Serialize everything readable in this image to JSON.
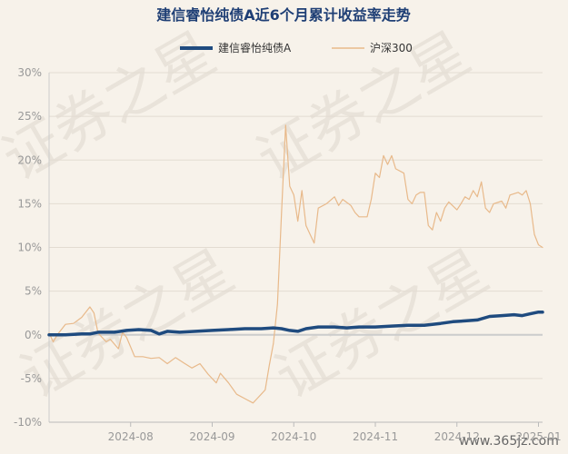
{
  "chart_data": {
    "type": "line",
    "title": "建信睿怡纯债A近6个月累计收益率走势",
    "xlabel": "",
    "ylabel": "",
    "ylim": [
      -10,
      30
    ],
    "yticks": [
      -10,
      -5,
      0,
      5,
      10,
      15,
      20,
      25,
      30
    ],
    "ytick_labels": [
      "-10%",
      "-5%",
      "0%",
      "5%",
      "10%",
      "15%",
      "20%",
      "25%",
      "30%"
    ],
    "xtick_labels": [
      "2024-08",
      "2024-09",
      "2024-10",
      "2024-11",
      "2024-12",
      "2025-01"
    ],
    "xtick_positions": [
      1.0,
      2.0,
      3.0,
      4.0,
      5.0,
      6.0
    ],
    "x_range": [
      0.0,
      6.05
    ],
    "grid": true,
    "legend_position": "top-center",
    "series": [
      {
        "name": "建信睿怡纯债A",
        "color": "#1f4b7f",
        "points": [
          [
            0.0,
            0.0
          ],
          [
            0.2,
            0.0
          ],
          [
            0.4,
            0.1
          ],
          [
            0.5,
            0.1
          ],
          [
            0.6,
            0.3
          ],
          [
            0.8,
            0.3
          ],
          [
            0.95,
            0.5
          ],
          [
            1.1,
            0.6
          ],
          [
            1.25,
            0.5
          ],
          [
            1.35,
            0.1
          ],
          [
            1.45,
            0.4
          ],
          [
            1.6,
            0.3
          ],
          [
            1.8,
            0.4
          ],
          [
            2.0,
            0.5
          ],
          [
            2.2,
            0.6
          ],
          [
            2.4,
            0.7
          ],
          [
            2.6,
            0.7
          ],
          [
            2.75,
            0.8
          ],
          [
            2.85,
            0.7
          ],
          [
            2.95,
            0.5
          ],
          [
            3.05,
            0.4
          ],
          [
            3.15,
            0.7
          ],
          [
            3.3,
            0.9
          ],
          [
            3.5,
            0.9
          ],
          [
            3.65,
            0.8
          ],
          [
            3.8,
            0.9
          ],
          [
            4.0,
            0.9
          ],
          [
            4.2,
            1.0
          ],
          [
            4.4,
            1.1
          ],
          [
            4.6,
            1.1
          ],
          [
            4.8,
            1.3
          ],
          [
            4.95,
            1.5
          ],
          [
            5.1,
            1.6
          ],
          [
            5.25,
            1.7
          ],
          [
            5.4,
            2.1
          ],
          [
            5.55,
            2.2
          ],
          [
            5.7,
            2.3
          ],
          [
            5.8,
            2.2
          ],
          [
            5.9,
            2.4
          ],
          [
            6.0,
            2.6
          ],
          [
            6.05,
            2.6
          ]
        ]
      },
      {
        "name": "沪深300",
        "color": "#e8b98a",
        "points": [
          [
            0.0,
            0.2
          ],
          [
            0.05,
            -0.8
          ],
          [
            0.1,
            0.0
          ],
          [
            0.2,
            1.2
          ],
          [
            0.3,
            1.3
          ],
          [
            0.4,
            2.0
          ],
          [
            0.5,
            3.2
          ],
          [
            0.55,
            2.5
          ],
          [
            0.6,
            0.2
          ],
          [
            0.7,
            -0.8
          ],
          [
            0.75,
            -0.5
          ],
          [
            0.85,
            -1.6
          ],
          [
            0.9,
            0.3
          ],
          [
            0.95,
            -0.3
          ],
          [
            1.05,
            -2.5
          ],
          [
            1.15,
            -2.5
          ],
          [
            1.25,
            -2.7
          ],
          [
            1.35,
            -2.6
          ],
          [
            1.45,
            -3.3
          ],
          [
            1.55,
            -2.6
          ],
          [
            1.65,
            -3.2
          ],
          [
            1.75,
            -3.8
          ],
          [
            1.85,
            -3.3
          ],
          [
            1.95,
            -4.5
          ],
          [
            2.05,
            -5.5
          ],
          [
            2.1,
            -4.4
          ],
          [
            2.2,
            -5.5
          ],
          [
            2.3,
            -6.8
          ],
          [
            2.4,
            -7.3
          ],
          [
            2.5,
            -7.8
          ],
          [
            2.55,
            -7.3
          ],
          [
            2.6,
            -6.8
          ],
          [
            2.65,
            -6.3
          ],
          [
            2.7,
            -3.5
          ],
          [
            2.75,
            -1.0
          ],
          [
            2.8,
            3.5
          ],
          [
            2.85,
            14.0
          ],
          [
            2.9,
            24.0
          ],
          [
            2.95,
            17.0
          ],
          [
            3.0,
            16.0
          ],
          [
            3.05,
            13.0
          ],
          [
            3.1,
            16.5
          ],
          [
            3.15,
            12.5
          ],
          [
            3.2,
            11.5
          ],
          [
            3.25,
            10.5
          ],
          [
            3.3,
            14.5
          ],
          [
            3.4,
            15.0
          ],
          [
            3.5,
            15.8
          ],
          [
            3.55,
            14.8
          ],
          [
            3.6,
            15.5
          ],
          [
            3.7,
            14.8
          ],
          [
            3.75,
            14.0
          ],
          [
            3.8,
            13.5
          ],
          [
            3.9,
            13.5
          ],
          [
            3.95,
            15.5
          ],
          [
            4.0,
            18.5
          ],
          [
            4.05,
            18.0
          ],
          [
            4.1,
            20.5
          ],
          [
            4.15,
            19.5
          ],
          [
            4.2,
            20.5
          ],
          [
            4.25,
            19.0
          ],
          [
            4.35,
            18.5
          ],
          [
            4.4,
            15.5
          ],
          [
            4.45,
            15.0
          ],
          [
            4.5,
            16.0
          ],
          [
            4.55,
            16.3
          ],
          [
            4.6,
            16.3
          ],
          [
            4.65,
            12.5
          ],
          [
            4.7,
            12.0
          ],
          [
            4.75,
            14.0
          ],
          [
            4.8,
            13.0
          ],
          [
            4.85,
            14.5
          ],
          [
            4.9,
            15.2
          ],
          [
            5.0,
            14.3
          ],
          [
            5.05,
            15.0
          ],
          [
            5.1,
            15.8
          ],
          [
            5.15,
            15.5
          ],
          [
            5.2,
            16.5
          ],
          [
            5.25,
            15.8
          ],
          [
            5.3,
            17.5
          ],
          [
            5.35,
            14.5
          ],
          [
            5.4,
            14.0
          ],
          [
            5.45,
            15.0
          ],
          [
            5.55,
            15.3
          ],
          [
            5.6,
            14.5
          ],
          [
            5.65,
            16.0
          ],
          [
            5.75,
            16.3
          ],
          [
            5.8,
            16.0
          ],
          [
            5.85,
            16.5
          ],
          [
            5.9,
            15.0
          ],
          [
            5.95,
            11.5
          ],
          [
            6.0,
            10.3
          ],
          [
            6.05,
            10.0
          ]
        ]
      }
    ]
  },
  "watermark": {
    "text": "证券之星",
    "site": "www.365jz.com"
  }
}
